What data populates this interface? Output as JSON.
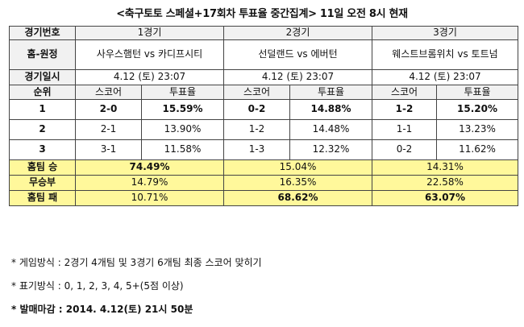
{
  "title": "<축구토토 스페셜+17회차 투표율 중간집계> 11일 오전 8시 현재",
  "table": {
    "row_labels": {
      "match_no": "경기번호",
      "home_away": "홈-원정",
      "date": "경기일시",
      "rank": "순위",
      "home_win": "홈팀 승",
      "draw": "무승부",
      "home_loss": "홈팀 패"
    },
    "sub_headers": {
      "score": "스코어",
      "vote_rate": "투표율"
    },
    "games": [
      {
        "no": "1경기",
        "match": "사우스햄턴 vs 카디프시티",
        "date": "4.12 (토) 23:07",
        "ranks": [
          {
            "rank": "1",
            "score": "2-0",
            "rate": "15.59%"
          },
          {
            "rank": "2",
            "score": "2-1",
            "rate": "13.90%"
          },
          {
            "rank": "3",
            "score": "3-1",
            "rate": "11.58%"
          }
        ],
        "home_win": "74.49%",
        "draw": "14.79%",
        "home_loss": "10.71%"
      },
      {
        "no": "2경기",
        "match": "선덜랜드 vs 에버턴",
        "date": "4.12 (토) 23:07",
        "ranks": [
          {
            "rank": "1",
            "score": "0-2",
            "rate": "14.88%"
          },
          {
            "rank": "2",
            "score": "1-2",
            "rate": "14.48%"
          },
          {
            "rank": "3",
            "score": "1-3",
            "rate": "12.32%"
          }
        ],
        "home_win": "15.04%",
        "draw": "16.35%",
        "home_loss": "68.62%"
      },
      {
        "no": "3경기",
        "match": "웨스트브롬위치 vs 토트넘",
        "date": "4.12 (토) 23:07",
        "ranks": [
          {
            "rank": "1",
            "score": "1-2",
            "rate": "15.20%"
          },
          {
            "rank": "2",
            "score": "1-1",
            "rate": "13.23%"
          },
          {
            "rank": "3",
            "score": "0-2",
            "rate": "11.62%"
          }
        ],
        "home_win": "14.31%",
        "draw": "22.58%",
        "home_loss": "63.07%"
      }
    ]
  },
  "notes": [
    "* 게임방식 : 2경기 4개팀 및 3경기 6개팀 최종 스코어 맞히기",
    "* 표기방식 : 0, 1, 2, 3, 4, 5+(5점 이상)",
    "* 발매마감 : 2014. 4.12(토) 21시 50분"
  ],
  "colors": {
    "highlight": "#fff89b",
    "header_bg": "#f1f1f1",
    "border": "#444444"
  }
}
